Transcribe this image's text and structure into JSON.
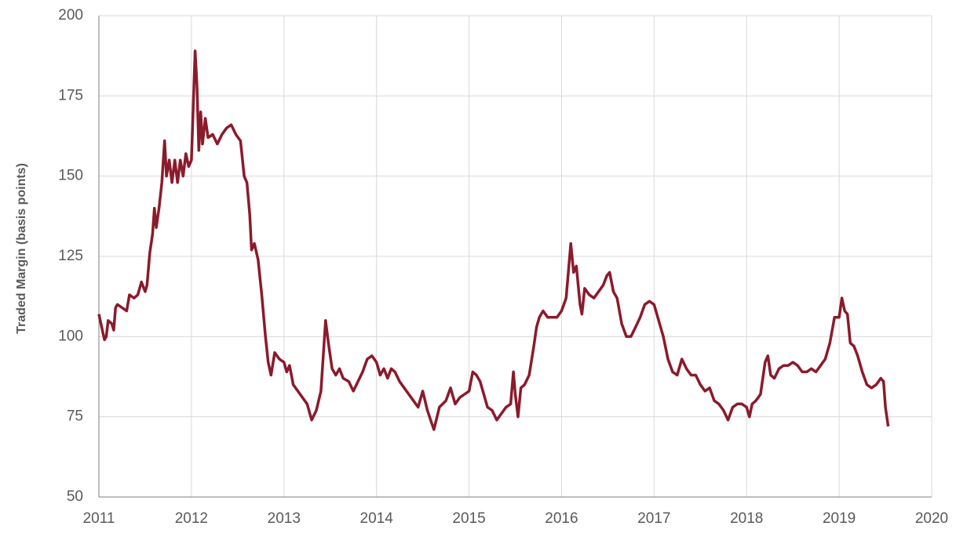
{
  "chart_data": {
    "type": "line",
    "y_label": "Traded Margin (basis points)",
    "xlim": [
      2011,
      2020
    ],
    "xticks": [
      2011,
      2012,
      2013,
      2014,
      2015,
      2016,
      2017,
      2018,
      2019,
      2020
    ],
    "ylim": [
      50,
      200
    ],
    "yticks": [
      50,
      75,
      100,
      125,
      150,
      175,
      200
    ],
    "grid": true,
    "x": [
      2011.0,
      2011.03,
      2011.06,
      2011.08,
      2011.1,
      2011.14,
      2011.16,
      2011.18,
      2011.2,
      2011.25,
      2011.3,
      2011.33,
      2011.38,
      2011.42,
      2011.46,
      2011.5,
      2011.52,
      2011.55,
      2011.58,
      2011.6,
      2011.62,
      2011.65,
      2011.68,
      2011.71,
      2011.73,
      2011.76,
      2011.79,
      2011.82,
      2011.85,
      2011.88,
      2011.91,
      2011.94,
      2011.97,
      2012.0,
      2012.04,
      2012.06,
      2012.08,
      2012.1,
      2012.12,
      2012.15,
      2012.18,
      2012.23,
      2012.28,
      2012.33,
      2012.38,
      2012.43,
      2012.48,
      2012.53,
      2012.57,
      2012.6,
      2012.63,
      2012.65,
      2012.68,
      2012.72,
      2012.76,
      2012.8,
      2012.83,
      2012.86,
      2012.9,
      2012.95,
      2013.0,
      2013.03,
      2013.06,
      2013.1,
      2013.15,
      2013.2,
      2013.25,
      2013.3,
      2013.35,
      2013.4,
      2013.45,
      2013.48,
      2013.52,
      2013.56,
      2013.6,
      2013.64,
      2013.7,
      2013.75,
      2013.8,
      2013.85,
      2013.9,
      2013.95,
      2014.0,
      2014.04,
      2014.08,
      2014.12,
      2014.16,
      2014.2,
      2014.25,
      2014.3,
      2014.35,
      2014.4,
      2014.45,
      2014.5,
      2014.55,
      2014.62,
      2014.68,
      2014.75,
      2014.8,
      2014.85,
      2014.9,
      2014.95,
      2015.0,
      2015.04,
      2015.08,
      2015.12,
      2015.16,
      2015.2,
      2015.25,
      2015.3,
      2015.35,
      2015.4,
      2015.45,
      2015.48,
      2015.5,
      2015.53,
      2015.56,
      2015.6,
      2015.65,
      2015.7,
      2015.73,
      2015.76,
      2015.8,
      2015.85,
      2015.9,
      2015.95,
      2016.0,
      2016.05,
      2016.1,
      2016.13,
      2016.16,
      2016.2,
      2016.22,
      2016.25,
      2016.3,
      2016.35,
      2016.4,
      2016.45,
      2016.49,
      2016.52,
      2016.56,
      2016.6,
      2016.65,
      2016.7,
      2016.75,
      2016.8,
      2016.85,
      2016.9,
      2016.95,
      2017.0,
      2017.05,
      2017.1,
      2017.15,
      2017.2,
      2017.25,
      2017.3,
      2017.35,
      2017.4,
      2017.45,
      2017.5,
      2017.55,
      2017.6,
      2017.65,
      2017.7,
      2017.75,
      2017.8,
      2017.85,
      2017.9,
      2017.95,
      2018.0,
      2018.03,
      2018.06,
      2018.1,
      2018.15,
      2018.2,
      2018.23,
      2018.26,
      2018.3,
      2018.35,
      2018.4,
      2018.45,
      2018.5,
      2018.55,
      2018.6,
      2018.65,
      2018.7,
      2018.75,
      2018.8,
      2018.85,
      2018.9,
      2018.95,
      2019.0,
      2019.03,
      2019.06,
      2019.09,
      2019.12,
      2019.16,
      2019.2,
      2019.25,
      2019.3,
      2019.35,
      2019.4,
      2019.45,
      2019.48,
      2019.5,
      2019.53
    ],
    "series": [
      {
        "color": "#8b1a2b",
        "values": [
          107,
          103,
          99,
          100,
          105,
          104,
          102,
          109,
          110,
          109,
          108,
          113,
          112,
          113,
          117,
          114,
          116,
          126,
          132,
          140,
          134,
          140,
          148,
          161,
          150,
          155,
          148,
          155,
          148,
          155,
          150,
          157,
          153,
          155,
          189,
          178,
          158,
          170,
          160,
          168,
          162,
          163,
          160,
          163,
          165,
          166,
          163,
          161,
          150,
          148,
          138,
          127,
          129,
          124,
          113,
          100,
          92,
          88,
          95,
          93,
          92,
          89,
          91,
          85,
          83,
          81,
          79,
          74,
          77,
          83,
          105,
          98,
          90,
          88,
          90,
          87,
          86,
          83,
          86,
          89,
          93,
          94,
          92,
          88,
          90,
          87,
          90,
          89,
          86,
          84,
          82,
          80,
          78,
          83,
          77,
          71,
          78,
          80,
          84,
          79,
          81,
          82,
          83,
          89,
          88,
          86,
          82,
          78,
          77,
          74,
          76,
          78,
          79,
          89,
          82,
          75,
          84,
          85,
          88,
          97,
          103,
          106,
          108,
          106,
          106,
          106,
          108,
          112,
          129,
          120,
          122,
          110,
          107,
          115,
          113,
          112,
          114,
          116,
          119,
          120,
          114,
          112,
          104,
          100,
          100,
          103,
          106,
          110,
          111,
          110,
          105,
          100,
          93,
          89,
          88,
          93,
          90,
          88,
          88,
          85,
          83,
          84,
          80,
          79,
          77,
          74,
          78,
          79,
          79,
          78,
          75,
          79,
          80,
          82,
          92,
          94,
          88,
          87,
          90,
          91,
          91,
          92,
          91,
          89,
          89,
          90,
          89,
          91,
          93,
          98,
          106,
          106,
          112,
          108,
          107,
          98,
          97,
          94,
          89,
          85,
          84,
          85,
          87,
          86,
          78,
          72
        ]
      }
    ]
  }
}
